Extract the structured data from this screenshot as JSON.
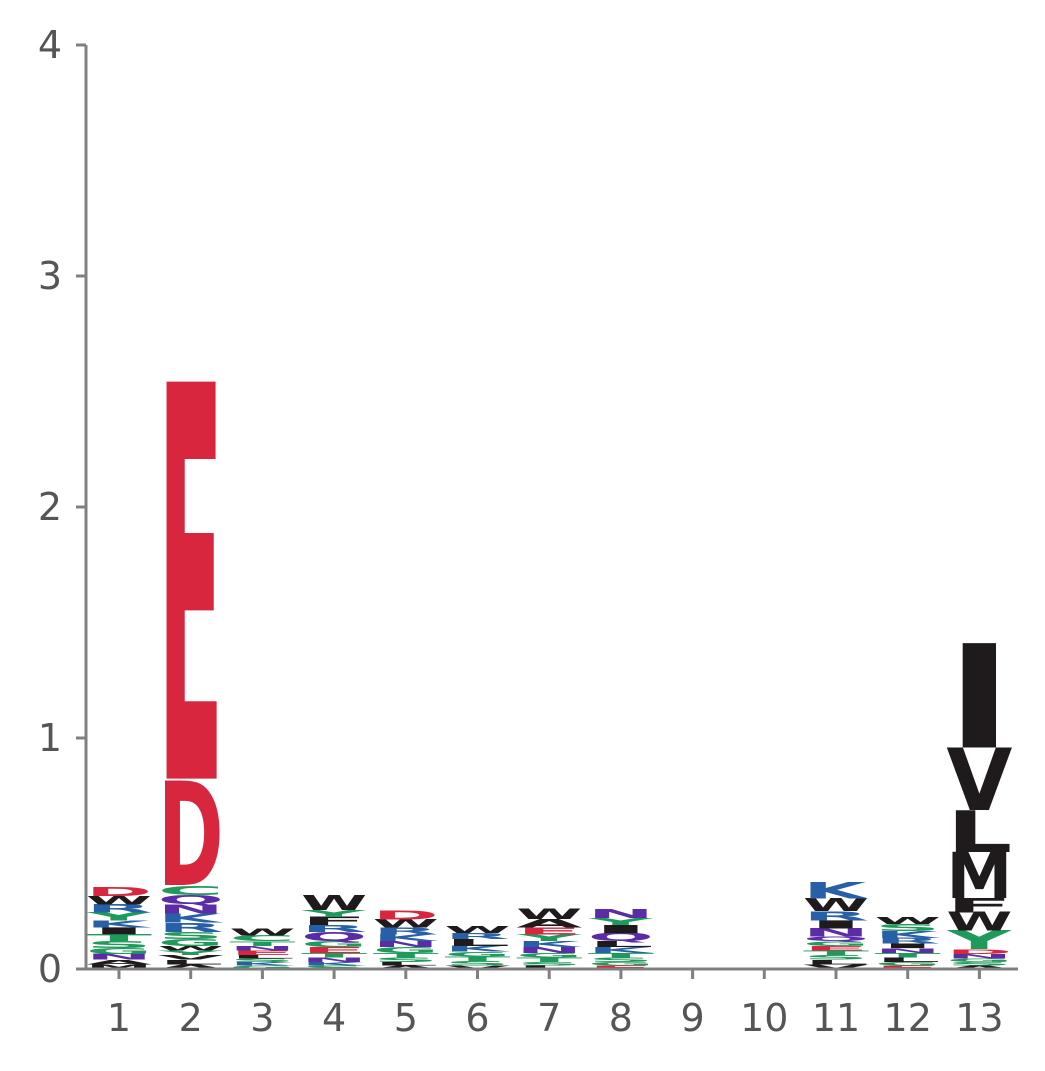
{
  "chart_data": {
    "type": "sequence-logo",
    "title": "",
    "xlabel": "",
    "ylabel": "",
    "ylim": [
      0,
      4
    ],
    "y_ticks": [
      "0",
      "1",
      "2",
      "3",
      "4"
    ],
    "positions": [
      "1",
      "2",
      "3",
      "4",
      "5",
      "6",
      "7",
      "8",
      "9",
      "10",
      "11",
      "12",
      "13"
    ],
    "color_scheme": {
      "acidic": "#d7263d",
      "basic": "#2760a6",
      "polar": "#1f9a5a",
      "neutral": "#5b2ca6",
      "hydrophobic": "#1f1b1d"
    },
    "axis_color": "#808080",
    "columns": [
      {
        "position": "1",
        "letters": [
          {
            "letter": "M",
            "height": 0.02
          },
          {
            "letter": "A",
            "height": 0.02
          },
          {
            "letter": "N",
            "height": 0.025
          },
          {
            "letter": "G",
            "height": 0.025
          },
          {
            "letter": "S",
            "height": 0.03
          },
          {
            "letter": "T",
            "height": 0.03
          },
          {
            "letter": "I",
            "height": 0.03
          },
          {
            "letter": "K",
            "height": 0.03
          },
          {
            "letter": "Y",
            "height": 0.035
          },
          {
            "letter": "R",
            "height": 0.035
          },
          {
            "letter": "W",
            "height": 0.035
          },
          {
            "letter": "D",
            "height": 0.04
          }
        ]
      },
      {
        "position": "2",
        "letters": [
          {
            "letter": "A",
            "height": 0.02
          },
          {
            "letter": "L",
            "height": 0.02
          },
          {
            "letter": "V",
            "height": 0.02
          },
          {
            "letter": "Y",
            "height": 0.02
          },
          {
            "letter": "W",
            "height": 0.02
          },
          {
            "letter": "G",
            "height": 0.03
          },
          {
            "letter": "S",
            "height": 0.03
          },
          {
            "letter": "R",
            "height": 0.04
          },
          {
            "letter": "K",
            "height": 0.04
          },
          {
            "letter": "N",
            "height": 0.04
          },
          {
            "letter": "Q",
            "height": 0.04
          },
          {
            "letter": "C",
            "height": 0.04
          },
          {
            "letter": "D",
            "height": 0.45
          },
          {
            "letter": "E",
            "height": 1.71
          }
        ]
      },
      {
        "position": "3",
        "letters": [
          {
            "letter": "G",
            "height": 0.015
          },
          {
            "letter": "K",
            "height": 0.015
          },
          {
            "letter": "S",
            "height": 0.015
          },
          {
            "letter": "L",
            "height": 0.015
          },
          {
            "letter": "E",
            "height": 0.02
          },
          {
            "letter": "N",
            "height": 0.02
          },
          {
            "letter": "T",
            "height": 0.02
          },
          {
            "letter": "C",
            "height": 0.025
          },
          {
            "letter": "W",
            "height": 0.03
          }
        ]
      },
      {
        "position": "4",
        "letters": [
          {
            "letter": "S",
            "height": 0.015
          },
          {
            "letter": "K",
            "height": 0.015
          },
          {
            "letter": "N",
            "height": 0.02
          },
          {
            "letter": "T",
            "height": 0.02
          },
          {
            "letter": "E",
            "height": 0.025
          },
          {
            "letter": "G",
            "height": 0.025
          },
          {
            "letter": "Q",
            "height": 0.04
          },
          {
            "letter": "R",
            "height": 0.03
          },
          {
            "letter": "F",
            "height": 0.035
          },
          {
            "letter": "Y",
            "height": 0.03
          },
          {
            "letter": "W",
            "height": 0.065
          }
        ]
      },
      {
        "position": "5",
        "letters": [
          {
            "letter": "A",
            "height": 0.015
          },
          {
            "letter": "L",
            "height": 0.015
          },
          {
            "letter": "S",
            "height": 0.02
          },
          {
            "letter": "T",
            "height": 0.02
          },
          {
            "letter": "G",
            "height": 0.025
          },
          {
            "letter": "N",
            "height": 0.025
          },
          {
            "letter": "K",
            "height": 0.03
          },
          {
            "letter": "R",
            "height": 0.03
          },
          {
            "letter": "W",
            "height": 0.035
          },
          {
            "letter": "D",
            "height": 0.04
          }
        ]
      },
      {
        "position": "6",
        "letters": [
          {
            "letter": "V",
            "height": 0.015
          },
          {
            "letter": "S",
            "height": 0.02
          },
          {
            "letter": "T",
            "height": 0.02
          },
          {
            "letter": "G",
            "height": 0.02
          },
          {
            "letter": "K",
            "height": 0.025
          },
          {
            "letter": "L",
            "height": 0.03
          },
          {
            "letter": "R",
            "height": 0.025
          },
          {
            "letter": "W",
            "height": 0.03
          }
        ]
      },
      {
        "position": "7",
        "letters": [
          {
            "letter": "L",
            "height": 0.015
          },
          {
            "letter": "S",
            "height": 0.015
          },
          {
            "letter": "T",
            "height": 0.02
          },
          {
            "letter": "G",
            "height": 0.02
          },
          {
            "letter": "N",
            "height": 0.025
          },
          {
            "letter": "K",
            "height": 0.025
          },
          {
            "letter": "Y",
            "height": 0.03
          },
          {
            "letter": "E",
            "height": 0.03
          },
          {
            "letter": "A",
            "height": 0.035
          },
          {
            "letter": "W",
            "height": 0.045
          }
        ]
      },
      {
        "position": "8",
        "letters": [
          {
            "letter": "E",
            "height": 0.015
          },
          {
            "letter": "G",
            "height": 0.015
          },
          {
            "letter": "S",
            "height": 0.02
          },
          {
            "letter": "T",
            "height": 0.02
          },
          {
            "letter": "K",
            "height": 0.025
          },
          {
            "letter": "L",
            "height": 0.025
          },
          {
            "letter": "Q",
            "height": 0.035
          },
          {
            "letter": "I",
            "height": 0.035
          },
          {
            "letter": "Y",
            "height": 0.03
          },
          {
            "letter": "N",
            "height": 0.04
          }
        ]
      },
      {
        "position": "9",
        "letters": []
      },
      {
        "position": "10",
        "letters": []
      },
      {
        "position": "11",
        "letters": [
          {
            "letter": "V",
            "height": 0.02
          },
          {
            "letter": "L",
            "height": 0.02
          },
          {
            "letter": "S",
            "height": 0.02
          },
          {
            "letter": "T",
            "height": 0.02
          },
          {
            "letter": "E",
            "height": 0.02
          },
          {
            "letter": "G",
            "height": 0.02
          },
          {
            "letter": "Q",
            "height": 0.02
          },
          {
            "letter": "N",
            "height": 0.035
          },
          {
            "letter": "I",
            "height": 0.035
          },
          {
            "letter": "R",
            "height": 0.04
          },
          {
            "letter": "W",
            "height": 0.055
          },
          {
            "letter": "K",
            "height": 0.07
          }
        ]
      },
      {
        "position": "12",
        "letters": [
          {
            "letter": "E",
            "height": 0.015
          },
          {
            "letter": "G",
            "height": 0.015
          },
          {
            "letter": "L",
            "height": 0.02
          },
          {
            "letter": "T",
            "height": 0.02
          },
          {
            "letter": "N",
            "height": 0.02
          },
          {
            "letter": "I",
            "height": 0.02
          },
          {
            "letter": "R",
            "height": 0.025
          },
          {
            "letter": "K",
            "height": 0.03
          },
          {
            "letter": "S",
            "height": 0.03
          },
          {
            "letter": "W",
            "height": 0.03
          }
        ]
      },
      {
        "position": "13",
        "letters": [
          {
            "letter": "A",
            "height": 0.015
          },
          {
            "letter": "S",
            "height": 0.015
          },
          {
            "letter": "G",
            "height": 0.015
          },
          {
            "letter": "N",
            "height": 0.02
          },
          {
            "letter": "D",
            "height": 0.02
          },
          {
            "letter": "Y",
            "height": 0.08
          },
          {
            "letter": "W",
            "height": 0.08
          },
          {
            "letter": "F",
            "height": 0.06
          },
          {
            "letter": "M",
            "height": 0.2
          },
          {
            "letter": "L",
            "height": 0.18
          },
          {
            "letter": "V",
            "height": 0.27
          },
          {
            "letter": "I",
            "height": 0.45
          }
        ]
      }
    ]
  }
}
